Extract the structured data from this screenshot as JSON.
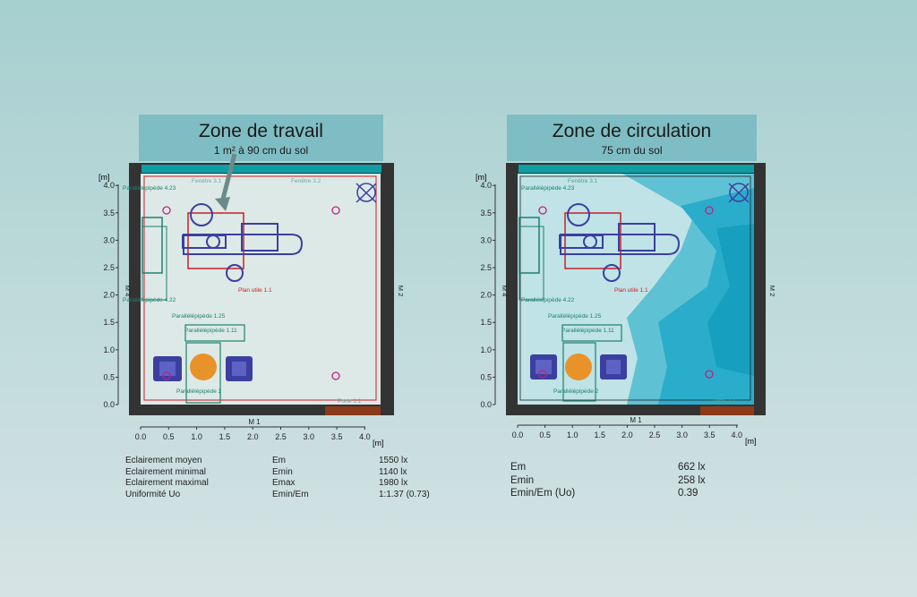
{
  "left": {
    "title": "Zone de travail",
    "subtitle": "1 m² à 90 cm du sol",
    "wall_bottom": "M 1",
    "wall_left": "M 4",
    "wall_right": "M 2",
    "unit_label": "[m]",
    "x_ticks": [
      "0.0",
      "0.5",
      "1.0",
      "1.5",
      "2.0",
      "2.5",
      "3.0",
      "3.5",
      "4.0"
    ],
    "y_ticks": [
      "0.0",
      "0.5",
      "1.0",
      "1.5",
      "2.0",
      "2.5",
      "3.0",
      "3.5",
      "4.0"
    ],
    "plan_labels": [
      "Parallélépipède 4.23",
      "Parallélépipède 4.22",
      "Parallélépipède 1.11",
      "Parallélépipède 2",
      "Parallélépipède 1.25",
      "Plan utile 1.1",
      "Fenêtre 3.1",
      "Fenêtre 3.2",
      "Porte 1.1"
    ],
    "stats": [
      {
        "label": "Eclairement moyen",
        "sym": "Em",
        "val": "1550 lx"
      },
      {
        "label": "Eclairement minimal",
        "sym": "Emin",
        "val": "1140 lx"
      },
      {
        "label": "Eclairement maximal",
        "sym": "Emax",
        "val": "1980 lx"
      },
      {
        "label": "Uniformité Uo",
        "sym": "Emin/Em",
        "val": "1:1.37 (0.73)"
      }
    ]
  },
  "right": {
    "title": "Zone de circulation",
    "subtitle": "75 cm du sol",
    "wall_bottom": "M 1",
    "wall_left": "M 4",
    "wall_right": "M 2",
    "unit_label": "[m]",
    "x_ticks": [
      "0.0",
      "0.5",
      "1.0",
      "1.5",
      "2.0",
      "2.5",
      "3.0",
      "3.5",
      "4.0"
    ],
    "y_ticks": [
      "0.0",
      "0.5",
      "1.0",
      "1.5",
      "2.0",
      "2.5",
      "3.0",
      "3.5",
      "4.0"
    ],
    "plan_labels": [
      "Parallélépipède 4.23",
      "Parallélépipède 4.22",
      "Parallélépipède 1.11",
      "Parallélépipède 2",
      "Parallélépipède 1.25",
      "Plan utile 1.1",
      "Fenêtre 3.1",
      "Porte 1.1"
    ],
    "stats": [
      {
        "sym": "Em",
        "val": "662 lx"
      },
      {
        "sym": "Emin",
        "val": "258 lx"
      },
      {
        "sym": "Emin/Em (Uo)",
        "val": "0.39"
      }
    ]
  },
  "colors": {
    "room_bg": "#dde9e6",
    "wall": "#333333",
    "window": "#0f9ea3",
    "door": "#8b3a1a",
    "furniture": "#3b3fa0",
    "workplane": "#c8202a",
    "table": "#1e8070",
    "plant": "#e8932a",
    "iso_light": "#a6dfe6",
    "iso_mid": "#5fc1d4",
    "iso_dark": "#169fbf"
  }
}
